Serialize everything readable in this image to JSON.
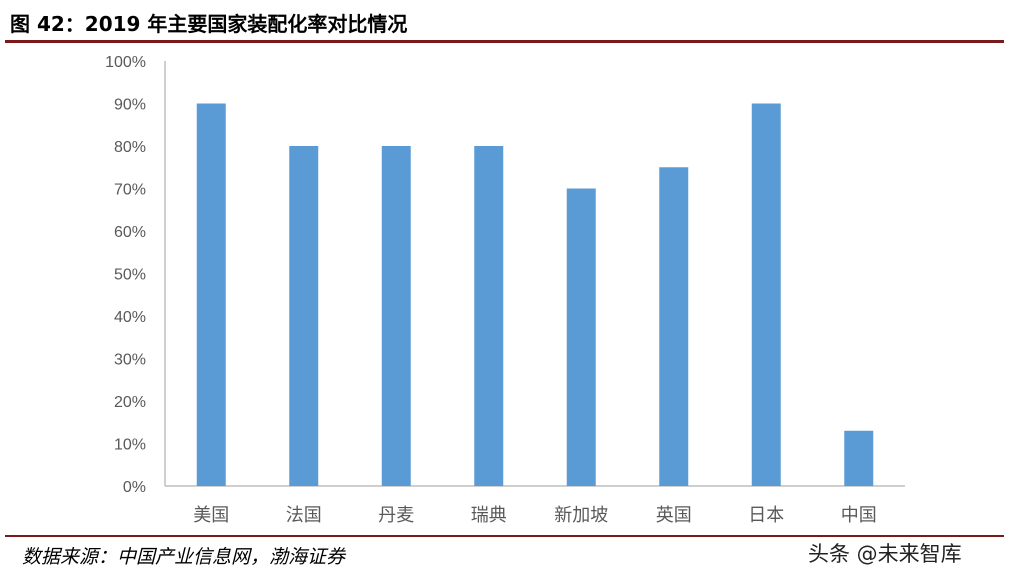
{
  "title": "图 42：2019 年主要国家装配化率对比情况",
  "source": "数据来源：中国产业信息网，渤海证券",
  "watermark": "头条 @未来智库",
  "colors": {
    "bar": "#5b9bd5",
    "rule": "#7b1a1a",
    "axis": "#bfbfbf",
    "text": "#595959"
  },
  "chart_data": {
    "type": "bar",
    "title": "",
    "xlabel": "",
    "ylabel": "",
    "categories": [
      "美国",
      "法国",
      "丹麦",
      "瑞典",
      "新加坡",
      "英国",
      "日本",
      "中国"
    ],
    "values": [
      90,
      80,
      80,
      80,
      70,
      75,
      90,
      13
    ],
    "unit": "%",
    "ylim": [
      0,
      100
    ],
    "yticks": [
      "0%",
      "10%",
      "20%",
      "30%",
      "40%",
      "50%",
      "60%",
      "70%",
      "80%",
      "90%",
      "100%"
    ],
    "grid": false,
    "legend": "none"
  }
}
